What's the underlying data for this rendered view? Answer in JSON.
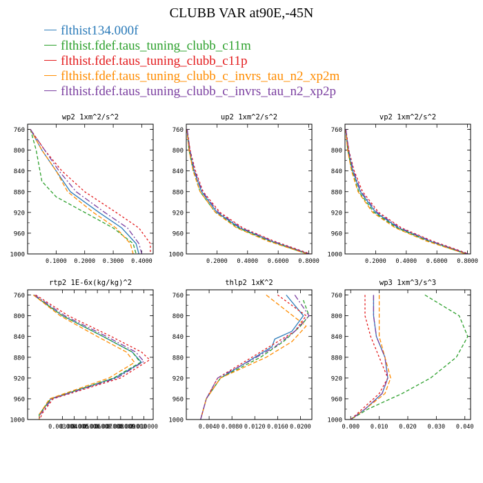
{
  "title": "CLUBB VAR at90E,-45N",
  "legend": [
    {
      "label": "flthist134.000f",
      "color": "#2b7bb9"
    },
    {
      "label": "flthist.fdef.taus_tuning_clubb_c11m",
      "color": "#2ca02c"
    },
    {
      "label": "flthist.fdef.taus_tuning_clubb_c11p",
      "color": "#e31a1c"
    },
    {
      "label": "flthist.fdef.taus_tuning_clubb_c_invrs_tau_n2_xp2m",
      "color": "#ff8c00"
    },
    {
      "label": "flthist.fdef.taus_tuning_clubb_c_invrs_tau_n2_xp2p",
      "color": "#7b3fa0"
    }
  ],
  "chart_data": [
    {
      "type": "line",
      "title": "wp2  1xm^2/s^2",
      "xlim": [
        0.0,
        0.44
      ],
      "ylim": [
        1000,
        750
      ],
      "xticks": [
        0.1,
        0.2,
        0.3,
        0.4
      ],
      "xticklabels": [
        "0.1000",
        "0.2000",
        "0.3000",
        "0.4000"
      ],
      "yticks": [
        760,
        800,
        840,
        880,
        920,
        960,
        1000
      ],
      "series": [
        {
          "x": [
            0.01,
            0.05,
            0.1,
            0.15,
            0.25,
            0.33,
            0.38,
            0.39
          ],
          "y": [
            760,
            800,
            840,
            880,
            920,
            950,
            980,
            1000
          ]
        },
        {
          "x": [
            0.01,
            0.03,
            0.05,
            0.1,
            0.2,
            0.3,
            0.37,
            0.38
          ],
          "y": [
            760,
            800,
            860,
            890,
            920,
            950,
            980,
            1000
          ]
        },
        {
          "x": [
            0.01,
            0.06,
            0.12,
            0.2,
            0.31,
            0.39,
            0.43,
            0.43
          ],
          "y": [
            760,
            800,
            840,
            880,
            920,
            950,
            980,
            1000
          ]
        },
        {
          "x": [
            0.01,
            0.05,
            0.1,
            0.14,
            0.23,
            0.31,
            0.36,
            0.37
          ],
          "y": [
            760,
            800,
            840,
            880,
            920,
            950,
            980,
            1000
          ]
        },
        {
          "x": [
            0.01,
            0.06,
            0.11,
            0.17,
            0.27,
            0.35,
            0.39,
            0.4
          ],
          "y": [
            760,
            800,
            840,
            880,
            920,
            950,
            980,
            1000
          ]
        }
      ]
    },
    {
      "type": "line",
      "title": "up2  1xm^2/s^2",
      "xlim": [
        0.0,
        0.82
      ],
      "ylim": [
        1000,
        750
      ],
      "xticks": [
        0.2,
        0.4,
        0.6,
        0.8
      ],
      "xticklabels": [
        "0.2000",
        "0.4000",
        "0.6000",
        "0.8000"
      ],
      "yticks": [
        760,
        800,
        840,
        880,
        920,
        960,
        1000
      ],
      "series": [
        {
          "x": [
            0.005,
            0.02,
            0.05,
            0.1,
            0.2,
            0.35,
            0.55,
            0.8
          ],
          "y": [
            760,
            800,
            840,
            880,
            920,
            950,
            975,
            1000
          ]
        },
        {
          "x": [
            0.004,
            0.018,
            0.045,
            0.09,
            0.19,
            0.34,
            0.54,
            0.79
          ],
          "y": [
            760,
            800,
            840,
            880,
            920,
            950,
            975,
            1000
          ]
        },
        {
          "x": [
            0.006,
            0.025,
            0.06,
            0.11,
            0.22,
            0.37,
            0.57,
            0.81
          ],
          "y": [
            760,
            800,
            840,
            880,
            920,
            950,
            975,
            1000
          ]
        },
        {
          "x": [
            0.004,
            0.018,
            0.045,
            0.09,
            0.19,
            0.33,
            0.53,
            0.79
          ],
          "y": [
            760,
            800,
            840,
            880,
            920,
            950,
            975,
            1000
          ]
        },
        {
          "x": [
            0.006,
            0.024,
            0.055,
            0.105,
            0.21,
            0.36,
            0.56,
            0.8
          ],
          "y": [
            760,
            800,
            840,
            880,
            920,
            950,
            975,
            1000
          ]
        }
      ]
    },
    {
      "type": "line",
      "title": "vp2  1xm^2/s^2",
      "xlim": [
        0.0,
        0.82
      ],
      "ylim": [
        1000,
        750
      ],
      "xticks": [
        0.2,
        0.4,
        0.6,
        0.8
      ],
      "xticklabels": [
        "0.2000",
        "0.4000",
        "0.6000",
        "0.8000"
      ],
      "yticks": [
        760,
        800,
        840,
        880,
        920,
        960,
        1000
      ],
      "series": [
        {
          "x": [
            0.005,
            0.02,
            0.05,
            0.1,
            0.2,
            0.35,
            0.55,
            0.8
          ],
          "y": [
            760,
            800,
            840,
            880,
            920,
            950,
            975,
            1000
          ]
        },
        {
          "x": [
            0.004,
            0.018,
            0.045,
            0.09,
            0.19,
            0.34,
            0.54,
            0.79
          ],
          "y": [
            760,
            800,
            840,
            880,
            920,
            950,
            975,
            1000
          ]
        },
        {
          "x": [
            0.006,
            0.025,
            0.06,
            0.115,
            0.22,
            0.37,
            0.57,
            0.81
          ],
          "y": [
            760,
            800,
            840,
            880,
            920,
            950,
            975,
            1000
          ]
        },
        {
          "x": [
            0.004,
            0.017,
            0.043,
            0.085,
            0.18,
            0.33,
            0.53,
            0.79
          ],
          "y": [
            760,
            800,
            840,
            880,
            920,
            950,
            975,
            1000
          ]
        },
        {
          "x": [
            0.006,
            0.024,
            0.055,
            0.105,
            0.21,
            0.36,
            0.56,
            0.8
          ],
          "y": [
            760,
            800,
            840,
            880,
            920,
            950,
            975,
            1000
          ]
        }
      ]
    },
    {
      "type": "line",
      "title": "rtp2  1E-6x(kg/kg)^2",
      "xlim": [
        0.0,
        0.0108
      ],
      "ylim": [
        1000,
        750
      ],
      "xticks": [
        0.003,
        0.004,
        0.005,
        0.006,
        0.007,
        0.008,
        0.009,
        0.01
      ],
      "xticklabels": [
        "0.003000",
        "0.004000",
        "0.005000",
        "0.006000",
        "0.007000",
        "0.008000",
        "0.009000",
        "0.010000"
      ],
      "yticks": [
        760,
        800,
        840,
        880,
        920,
        960,
        1000
      ],
      "series": [
        {
          "x": [
            0.0005,
            0.003,
            0.0065,
            0.009,
            0.0098,
            0.0075,
            0.002,
            0.001,
            0.001
          ],
          "y": [
            760,
            800,
            840,
            870,
            890,
            920,
            960,
            990,
            1000
          ]
        },
        {
          "x": [
            0.0005,
            0.003,
            0.0065,
            0.009,
            0.0097,
            0.0074,
            0.002,
            0.001,
            0.001
          ],
          "y": [
            760,
            800,
            840,
            870,
            890,
            920,
            960,
            990,
            1000
          ]
        },
        {
          "x": [
            0.0007,
            0.0035,
            0.0072,
            0.0098,
            0.0105,
            0.008,
            0.0022,
            0.0012,
            0.0011
          ],
          "y": [
            760,
            800,
            840,
            870,
            885,
            920,
            960,
            990,
            1000
          ]
        },
        {
          "x": [
            0.0005,
            0.0028,
            0.006,
            0.0085,
            0.0092,
            0.007,
            0.0019,
            0.001,
            0.001
          ],
          "y": [
            760,
            800,
            840,
            870,
            890,
            920,
            960,
            990,
            1000
          ]
        },
        {
          "x": [
            0.0006,
            0.0032,
            0.0068,
            0.0093,
            0.01,
            0.0077,
            0.0021,
            0.0011,
            0.001
          ],
          "y": [
            760,
            800,
            840,
            870,
            888,
            920,
            960,
            990,
            1000
          ]
        }
      ]
    },
    {
      "type": "line",
      "title": "thlp2  1xK^2",
      "xlim": [
        0.0,
        0.022
      ],
      "ylim": [
        1000,
        750
      ],
      "xticks": [
        0.004,
        0.008,
        0.012,
        0.016,
        0.02
      ],
      "xticklabels": [
        "0.0040",
        "0.0080",
        "0.0120",
        "0.0160",
        "0.0200"
      ],
      "yticks": [
        760,
        800,
        840,
        880,
        920,
        960,
        1000
      ],
      "series": [
        {
          "x": [
            0.0175,
            0.0205,
            0.0185,
            0.0155,
            0.015,
            0.012,
            0.006,
            0.0035,
            0.0025
          ],
          "y": [
            760,
            800,
            830,
            845,
            860,
            880,
            920,
            960,
            1000
          ]
        },
        {
          "x": [
            0.0205,
            0.0215,
            0.02,
            0.017,
            0.013,
            0.006,
            0.0035,
            0.0025
          ],
          "y": [
            770,
            800,
            820,
            850,
            880,
            920,
            960,
            1000
          ]
        },
        {
          "x": [
            0.016,
            0.021,
            0.019,
            0.016,
            0.0115,
            0.0055,
            0.0035,
            0.0025
          ],
          "y": [
            760,
            800,
            830,
            850,
            880,
            920,
            960,
            1000
          ]
        },
        {
          "x": [
            0.014,
            0.0175,
            0.021,
            0.0185,
            0.014,
            0.006,
            0.0035,
            0.0025
          ],
          "y": [
            760,
            790,
            820,
            850,
            880,
            920,
            960,
            1000
          ]
        },
        {
          "x": [
            0.019,
            0.0215,
            0.019,
            0.0155,
            0.0115,
            0.0055,
            0.0035,
            0.0025
          ],
          "y": [
            760,
            800,
            830,
            860,
            885,
            920,
            960,
            1000
          ]
        }
      ]
    },
    {
      "type": "line",
      "title": "wp3  1xm^3/s^3",
      "xlim": [
        -0.002,
        0.042
      ],
      "ylim": [
        1000,
        750
      ],
      "xticks": [
        0.0,
        0.01,
        0.02,
        0.03,
        0.04
      ],
      "xticklabels": [
        "0.000",
        "0.010",
        "0.020",
        "0.030",
        "0.040"
      ],
      "yticks": [
        760,
        800,
        840,
        880,
        920,
        960,
        1000
      ],
      "series": [
        {
          "x": [
            0.008,
            0.008,
            0.009,
            0.012,
            0.013,
            0.011,
            0.005,
            0.0
          ],
          "y": [
            760,
            800,
            840,
            880,
            920,
            950,
            980,
            1000
          ]
        },
        {
          "x": [
            0.026,
            0.038,
            0.041,
            0.037,
            0.028,
            0.018,
            0.006,
            0.0
          ],
          "y": [
            760,
            800,
            840,
            880,
            920,
            950,
            980,
            1000
          ]
        },
        {
          "x": [
            0.005,
            0.005,
            0.007,
            0.01,
            0.013,
            0.01,
            0.004,
            0.0
          ],
          "y": [
            760,
            800,
            840,
            880,
            920,
            950,
            980,
            1000
          ]
        },
        {
          "x": [
            0.01,
            0.01,
            0.01,
            0.012,
            0.014,
            0.012,
            0.005,
            0.0
          ],
          "y": [
            760,
            800,
            840,
            880,
            920,
            950,
            980,
            1000
          ]
        },
        {
          "x": [
            0.008,
            0.008,
            0.009,
            0.012,
            0.013,
            0.011,
            0.005,
            0.0
          ],
          "y": [
            760,
            800,
            840,
            880,
            920,
            950,
            980,
            1000
          ]
        }
      ]
    }
  ]
}
